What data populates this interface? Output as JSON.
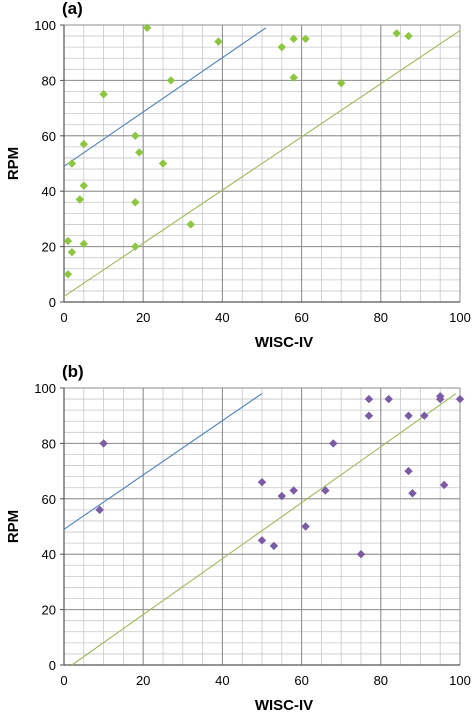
{
  "chart_data": [
    {
      "type": "scatter",
      "panel_label": "(a)",
      "xlabel": "WISC-IV",
      "ylabel": "RPM",
      "xlim": [
        0,
        100
      ],
      "ylim": [
        0,
        100
      ],
      "xticks": [
        0,
        20,
        40,
        60,
        80,
        100
      ],
      "yticks": [
        0,
        20,
        40,
        60,
        80,
        100
      ],
      "grid": true,
      "marker_color": "#8DC63F",
      "points": [
        {
          "x": 1,
          "y": 10
        },
        {
          "x": 1,
          "y": 22
        },
        {
          "x": 2,
          "y": 18
        },
        {
          "x": 2,
          "y": 50
        },
        {
          "x": 4,
          "y": 37
        },
        {
          "x": 5,
          "y": 42
        },
        {
          "x": 5,
          "y": 57
        },
        {
          "x": 5,
          "y": 21
        },
        {
          "x": 10,
          "y": 75
        },
        {
          "x": 18,
          "y": 60
        },
        {
          "x": 18,
          "y": 36
        },
        {
          "x": 18,
          "y": 20
        },
        {
          "x": 19,
          "y": 54
        },
        {
          "x": 21,
          "y": 99
        },
        {
          "x": 25,
          "y": 50
        },
        {
          "x": 27,
          "y": 80
        },
        {
          "x": 32,
          "y": 28
        },
        {
          "x": 39,
          "y": 94
        },
        {
          "x": 55,
          "y": 92
        },
        {
          "x": 58,
          "y": 95
        },
        {
          "x": 58,
          "y": 81
        },
        {
          "x": 61,
          "y": 95
        },
        {
          "x": 70,
          "y": 79
        },
        {
          "x": 84,
          "y": 97
        },
        {
          "x": 87,
          "y": 96
        }
      ],
      "lines": [
        {
          "color": "#4F81BD",
          "x": [
            0,
            51
          ],
          "y": [
            49,
            99
          ]
        },
        {
          "color": "#9BBB59",
          "x": [
            0,
            100
          ],
          "y": [
            2,
            98
          ]
        }
      ]
    },
    {
      "type": "scatter",
      "panel_label": "(b)",
      "xlabel": "WISC-IV",
      "ylabel": "RPM",
      "xlim": [
        0,
        100
      ],
      "ylim": [
        0,
        100
      ],
      "xticks": [
        0,
        20,
        40,
        60,
        80,
        100
      ],
      "yticks": [
        0,
        20,
        40,
        60,
        80,
        100
      ],
      "grid": true,
      "marker_color": "#7B5BA6",
      "points": [
        {
          "x": 9,
          "y": 56
        },
        {
          "x": 10,
          "y": 80
        },
        {
          "x": 50,
          "y": 66
        },
        {
          "x": 50,
          "y": 45
        },
        {
          "x": 53,
          "y": 43
        },
        {
          "x": 55,
          "y": 61
        },
        {
          "x": 58,
          "y": 63
        },
        {
          "x": 61,
          "y": 50
        },
        {
          "x": 66,
          "y": 63
        },
        {
          "x": 68,
          "y": 80
        },
        {
          "x": 75,
          "y": 40
        },
        {
          "x": 77,
          "y": 96
        },
        {
          "x": 77,
          "y": 90
        },
        {
          "x": 82,
          "y": 96
        },
        {
          "x": 87,
          "y": 90
        },
        {
          "x": 87,
          "y": 70
        },
        {
          "x": 88,
          "y": 62
        },
        {
          "x": 91,
          "y": 90
        },
        {
          "x": 95,
          "y": 97
        },
        {
          "x": 95,
          "y": 96
        },
        {
          "x": 96,
          "y": 65
        },
        {
          "x": 100,
          "y": 96
        }
      ],
      "lines": [
        {
          "color": "#4F81BD",
          "x": [
            0,
            50
          ],
          "y": [
            49,
            98
          ]
        },
        {
          "color": "#9BBB59",
          "x": [
            2,
            99
          ],
          "y": [
            0,
            98
          ]
        }
      ]
    }
  ]
}
